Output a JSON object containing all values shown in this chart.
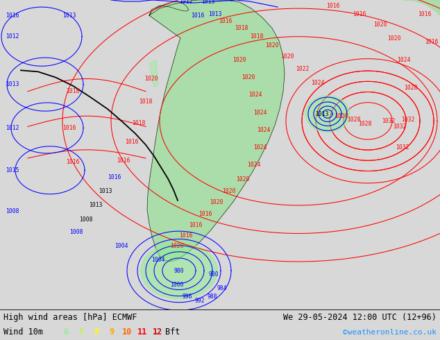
{
  "title_left": "High wind areas [hPa] ECMWF",
  "title_right": "We 29-05-2024 12:00 UTC (12+96)",
  "legend_label": "Wind 10m",
  "legend_nums": [
    "6",
    "7",
    "8",
    "9",
    "10",
    "11",
    "12"
  ],
  "legend_num_colors": [
    "#90ee90",
    "#adff2f",
    "#ffff00",
    "#ffa500",
    "#ff6600",
    "#ff0000",
    "#cc0000"
  ],
  "legend_bft": "Bft",
  "credit": "©weatheronline.co.uk",
  "bg_color": "#d8d8d8",
  "sea_color": "#d8d8d8",
  "land_color": "#aaddaa",
  "bottom_bg": "#ffffff",
  "figsize": [
    6.34,
    4.9
  ],
  "dpi": 100,
  "credit_color": "#1e90ff"
}
